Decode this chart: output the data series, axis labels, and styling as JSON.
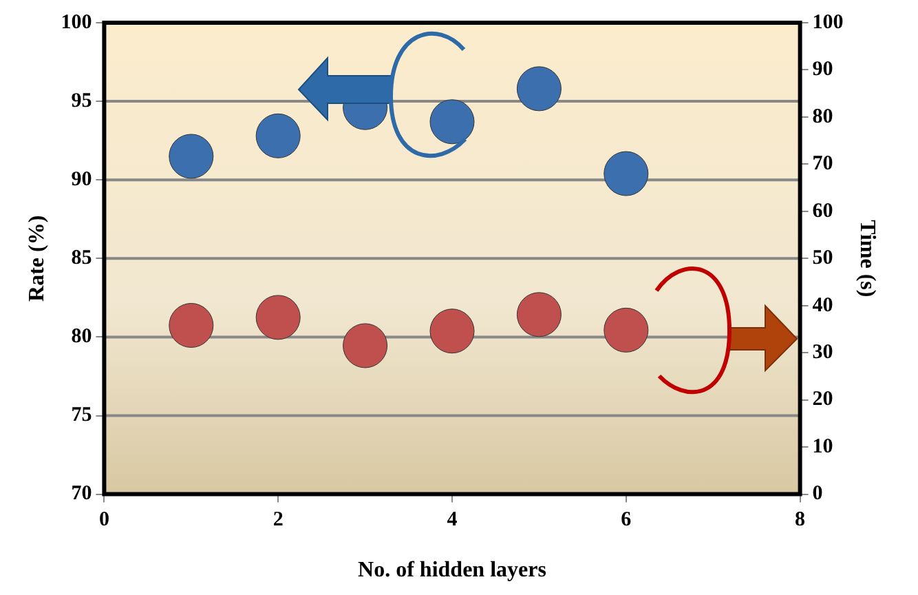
{
  "chart_data": {
    "type": "scatter",
    "xlabel": "No. of hidden layers",
    "ylabel": "Rate (%)",
    "y2label": "Time (s)",
    "x": [
      1,
      2,
      3,
      4,
      5,
      6
    ],
    "series": [
      {
        "color": "#3b6fae",
        "values": [
          91.5,
          92.8,
          94.6,
          93.7,
          95.8,
          90.4
        ]
      },
      {
        "color": "#c0504d",
        "axis": "y2",
        "values": [
          35.8,
          37.5,
          31.5,
          34.6,
          38.1,
          34.8
        ]
      }
    ],
    "xlim": [
      0,
      8
    ],
    "xticks": [
      0,
      2,
      4,
      6,
      8
    ],
    "ylim": [
      70,
      100
    ],
    "yticks": [
      70,
      75,
      80,
      85,
      90,
      95,
      100
    ],
    "y2lim": [
      0,
      100
    ],
    "y2ticks": [
      0,
      10,
      20,
      30,
      40,
      50,
      60,
      70,
      80,
      90,
      100
    ],
    "grid": "y",
    "legend": false,
    "marker": "circle"
  }
}
